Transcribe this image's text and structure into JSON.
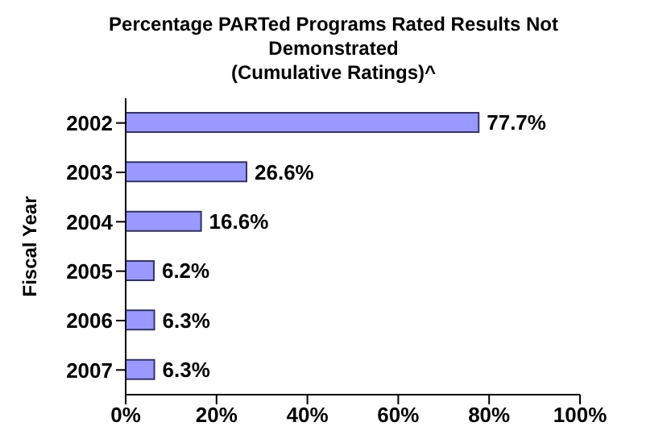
{
  "chart_data": {
    "type": "bar",
    "orientation": "horizontal",
    "title": "Percentage PARTed Programs Rated Results Not Demonstrated",
    "subtitle": "(Cumulative Ratings)^",
    "ylabel": "Fiscal Year",
    "categories": [
      "2002",
      "2003",
      "2004",
      "2005",
      "2006",
      "2007"
    ],
    "values": [
      77.7,
      26.6,
      16.6,
      6.2,
      6.3,
      6.3
    ],
    "value_labels": [
      "77.7%",
      "26.6%",
      "16.6%",
      "6.2%",
      "6.3%",
      "6.3%"
    ],
    "color": "#9999ff",
    "xlim": [
      0,
      100
    ],
    "xticks": [
      {
        "value": 0,
        "label": "0%"
      },
      {
        "value": 20,
        "label": "20%"
      },
      {
        "value": 40,
        "label": "40%"
      },
      {
        "value": 60,
        "label": "60%"
      },
      {
        "value": 80,
        "label": "80%"
      },
      {
        "value": 100,
        "label": "100%"
      }
    ],
    "grid": false,
    "legend": false
  }
}
